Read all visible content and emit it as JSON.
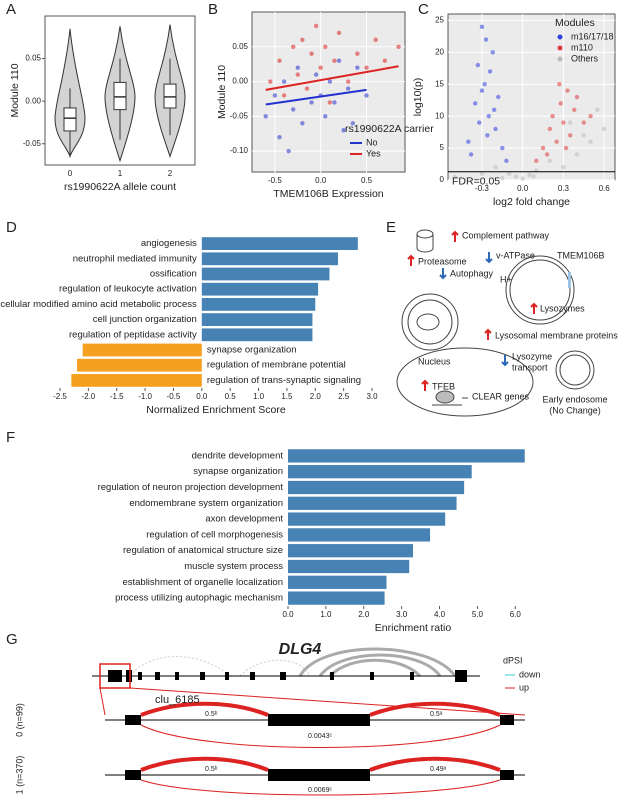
{
  "panels": [
    "A",
    "B",
    "C",
    "D",
    "E",
    "F",
    "G"
  ],
  "chart_data": [
    {
      "type": "violin",
      "ylabel": "Module 110",
      "xlabel": "rs1990622A allele count",
      "categories": [
        "0",
        "1",
        "2"
      ],
      "color": "#d3d3d3",
      "violin_min": [
        -0.065,
        -0.07,
        -0.065
      ],
      "violin_max": [
        0.085,
        0.088,
        0.09
      ],
      "min": [
        -0.065,
        -0.045,
        -0.04
      ],
      "q1": [
        -0.035,
        -0.01,
        -0.008
      ],
      "median": [
        -0.02,
        0.005,
        0.005
      ],
      "q3": [
        -0.008,
        0.022,
        0.02
      ],
      "max": [
        0.015,
        0.05,
        0.05
      ],
      "ylim": [
        -0.075,
        0.1
      ],
      "yticks": [
        -0.05,
        {
          "value": 0,
          "label": "0.00"
        },
        0.05
      ],
      "grid": false
    },
    {
      "type": "scatter",
      "xlabel": "TMEM106B Expression",
      "ylabel": "Module 110",
      "legend_title": "rs1990622A carrier",
      "series": [
        {
          "name": "No",
          "color": "#2233cc",
          "x": [
            -0.6,
            -0.5,
            -0.45,
            -0.4,
            -0.3,
            -0.25,
            -0.2,
            -0.1,
            -0.05,
            0,
            0.05,
            0.1,
            0.15,
            0.2,
            0.3,
            0.35,
            0.4,
            0.5,
            -0.35,
            0.25
          ],
          "values": [
            -0.05,
            -0.02,
            -0.08,
            0.0,
            -0.04,
            0.02,
            -0.06,
            -0.03,
            0.01,
            -0.02,
            -0.05,
            0.0,
            -0.03,
            0.03,
            -0.01,
            -0.06,
            0.02,
            -0.02,
            -0.1,
            -0.07
          ],
          "fit_x": [
            -0.6,
            0.5
          ],
          "fit_values": [
            -0.033,
            -0.012
          ]
        },
        {
          "name": "Yes",
          "color": "#dd2222",
          "x": [
            -0.55,
            -0.45,
            -0.4,
            -0.3,
            -0.25,
            -0.2,
            -0.15,
            -0.1,
            -0.05,
            0,
            0.05,
            0.1,
            0.15,
            0.2,
            0.3,
            0.4,
            0.5,
            0.6,
            0.7,
            0.85
          ],
          "values": [
            0.0,
            0.03,
            -0.02,
            0.05,
            0.01,
            0.06,
            -0.01,
            0.04,
            0.08,
            0.02,
            0.05,
            -0.03,
            0.03,
            0.07,
            0.0,
            0.04,
            0.02,
            0.06,
            0.03,
            0.05
          ],
          "fit_x": [
            -0.6,
            0.85
          ],
          "fit_values": [
            -0.012,
            0.022
          ]
        }
      ],
      "xlim": [
        -0.75,
        0.92
      ],
      "xticks": [
        -0.5,
        {
          "value": 0,
          "label": "0.0"
        },
        0.5
      ],
      "ylim": [
        -0.13,
        0.1
      ],
      "yticks": [
        {
          "value": -0.1,
          "label": "-0.10"
        },
        -0.05,
        {
          "value": 0,
          "label": "0.00"
        },
        0.05
      ],
      "grid": true,
      "legend": "bottom-right"
    },
    {
      "type": "scatter",
      "xlabel": "log2 fold change",
      "ylabel": "log10(p)",
      "legend_title": "Modules",
      "series": [
        {
          "name": "Others",
          "color": "#bbbbbb",
          "x": [
            -0.5,
            -0.2,
            -0.1,
            -0.05,
            0,
            0.05,
            0.1,
            0.2,
            0.3,
            0.4,
            0.5,
            0.6,
            -0.15,
            0.08,
            0.35,
            0.55,
            -0.3,
            0.45
          ],
          "values": [
            0.5,
            2,
            1,
            0.5,
            0.2,
            0.8,
            1.5,
            3,
            2,
            4,
            6,
            8,
            0.3,
            0.6,
            9,
            11,
            1,
            7
          ]
        },
        {
          "name": "m16/17/18",
          "color": "#2f3fe0",
          "x": [
            -0.4,
            -0.35,
            -0.33,
            -0.3,
            -0.28,
            -0.25,
            -0.22,
            -0.2,
            -0.18,
            -0.15,
            -0.32,
            -0.27,
            -0.24,
            -0.38,
            -0.12,
            -0.3,
            -0.26,
            -0.21
          ],
          "values": [
            6,
            12,
            18,
            24,
            15,
            10,
            20,
            8,
            13,
            5,
            9,
            22,
            17,
            4,
            3,
            14,
            7,
            11
          ]
        },
        {
          "name": "m110",
          "color": "#e03a3a",
          "x": [
            0.1,
            0.15,
            0.2,
            0.22,
            0.25,
            0.28,
            0.3,
            0.33,
            0.35,
            0.38,
            0.4,
            0.45,
            0.5,
            0.18,
            0.27,
            0.32
          ],
          "values": [
            3,
            5,
            8,
            10,
            6,
            12,
            9,
            14,
            7,
            11,
            13,
            9,
            10,
            4,
            15,
            5
          ]
        }
      ],
      "legend_order": [
        1,
        2,
        0
      ],
      "hline": 1.3,
      "hline_label": "FDR=0.05",
      "xlim": [
        -0.55,
        0.68
      ],
      "xticks": [
        -0.3,
        {
          "value": 0,
          "label": "0.0"
        },
        0.3,
        0.6
      ],
      "ylim": [
        0,
        26
      ],
      "yticks": [
        0,
        5,
        10,
        15,
        20,
        25
      ],
      "grid": true,
      "legend": "top-right"
    },
    {
      "type": "barh",
      "xlabel": "Normalized Enrichment Score",
      "categories": [
        "angiogenesis",
        "neutrophil mediated immunity",
        "ossification",
        "regulation of leukocyte activation",
        "cellular modified amino acid metabolic process",
        "cell junction organization",
        "regulation of peptidase activity",
        "synapse organization",
        "regulation of membrane potential",
        "regulation of trans-synaptic signaling"
      ],
      "values": [
        2.75,
        2.4,
        2.25,
        2.05,
        2.0,
        1.95,
        1.95,
        -2.1,
        -2.2,
        -2.3
      ],
      "colors": [
        "#4682b4",
        "#4682b4",
        "#4682b4",
        "#4682b4",
        "#4682b4",
        "#4682b4",
        "#4682b4",
        "#f5a020",
        "#f5a020",
        "#f5a020"
      ],
      "xlim": [
        -2.5,
        3.0
      ],
      "xticks": [
        -2.5,
        {
          "value": -2,
          "label": "-2.0"
        },
        -1.5,
        {
          "value": -1,
          "label": "-1.0"
        },
        -0.5,
        {
          "value": 0,
          "label": "0.0"
        },
        0.5,
        {
          "value": 1,
          "label": "1.0"
        },
        1.5,
        {
          "value": 2,
          "label": "2.0"
        },
        2.5,
        {
          "value": 3,
          "label": "3.0"
        }
      ]
    },
    {
      "type": "barh",
      "xlabel": "Enrichment ratio",
      "categories": [
        "dendrite development",
        "synapse organization",
        "regulation of neuron projection development",
        "endomembrane system organization",
        "axon development",
        "regulation of cell morphogenesis",
        "regulation of anatomical structure size",
        "muscle system process",
        "establishment of organelle localization",
        "process utilizing autophagic mechanism"
      ],
      "values": [
        6.25,
        4.85,
        4.65,
        4.45,
        4.15,
        3.75,
        3.3,
        3.2,
        2.6,
        2.55
      ],
      "colors": [
        "#4682b4",
        "#4682b4",
        "#4682b4",
        "#4682b4",
        "#4682b4",
        "#4682b4",
        "#4682b4",
        "#4682b4",
        "#4682b4",
        "#4682b4"
      ],
      "xlim": [
        0,
        6.6
      ],
      "xticks": [
        {
          "value": 0,
          "label": "0.0"
        },
        {
          "value": 1,
          "label": "1.0"
        },
        {
          "value": 2,
          "label": "2.0"
        },
        {
          "value": 3,
          "label": "3.0"
        },
        {
          "value": 4,
          "label": "4.0"
        },
        {
          "value": 5,
          "label": "5.0"
        },
        {
          "value": 6,
          "label": "6.0"
        }
      ]
    }
  ],
  "diagram_e": {
    "complement": "Complement pathway",
    "proteasome": "Proteasome",
    "autophagy": "Autophagy",
    "vatpase": "v-ATPase",
    "tmem": "TMEM106B",
    "hplus": "H+",
    "lysozymes": "Lysozymes",
    "lmp": "Lysosomal membrane proteins",
    "nucleus": "Nucleus",
    "tfeb": "TFEB",
    "clear": "CLEAR genes",
    "lysozyme_transport": [
      "Lysozyme",
      "transport"
    ],
    "endosome": [
      "Early endosome",
      "(No Change)"
    ]
  },
  "diagram_g": {
    "gene": "DLG4",
    "cluster": "clu_6185",
    "legend_title": "dPSI",
    "legend": [
      "down",
      "up"
    ],
    "rows": [
      {
        "label": "0 (n=99)",
        "arcs": [
          "0.5ᵇ",
          "0.5ᵃ",
          "0.0043ᶜ"
        ]
      },
      {
        "label": "1 (n=370)",
        "arcs": [
          "0.5ᵇ",
          "0.49ᵃ",
          "0.0069ᶜ"
        ]
      }
    ]
  }
}
